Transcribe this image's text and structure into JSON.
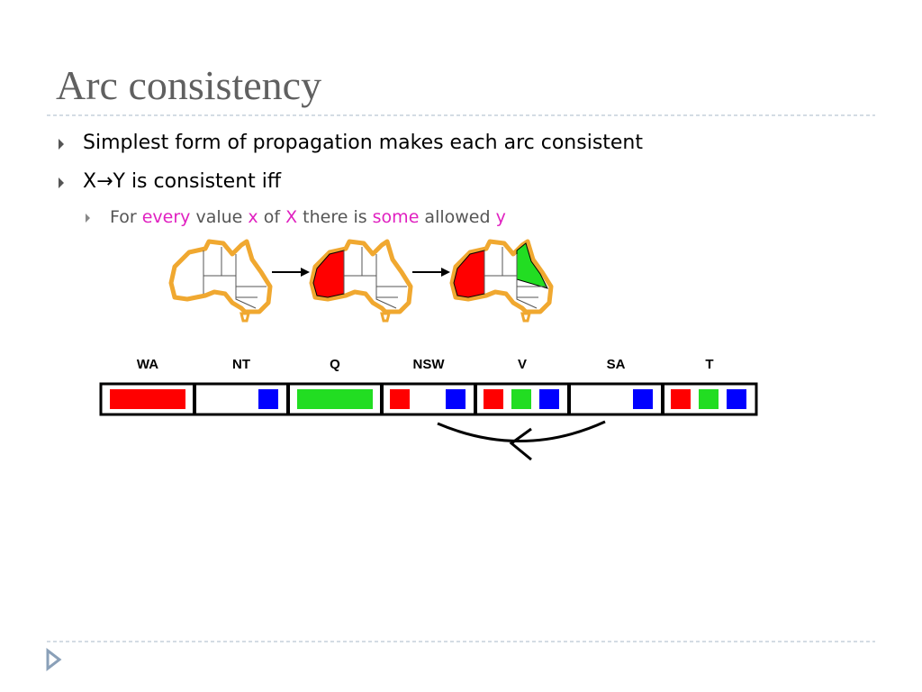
{
  "title": "Arc consistency",
  "bullets": [
    {
      "segments": [
        "Simplest form of propagation makes each arc consistent"
      ]
    },
    {
      "segments": [
        "X",
        "→",
        "Y is consistent iff"
      ],
      "sub": [
        "For ",
        "every",
        " value ",
        "x",
        " of ",
        "X",
        " there is ",
        "some",
        " allowed ",
        "y"
      ]
    }
  ],
  "variables": [
    "WA",
    "NT",
    "Q",
    "NSW",
    "V",
    "SA",
    "T"
  ]
}
